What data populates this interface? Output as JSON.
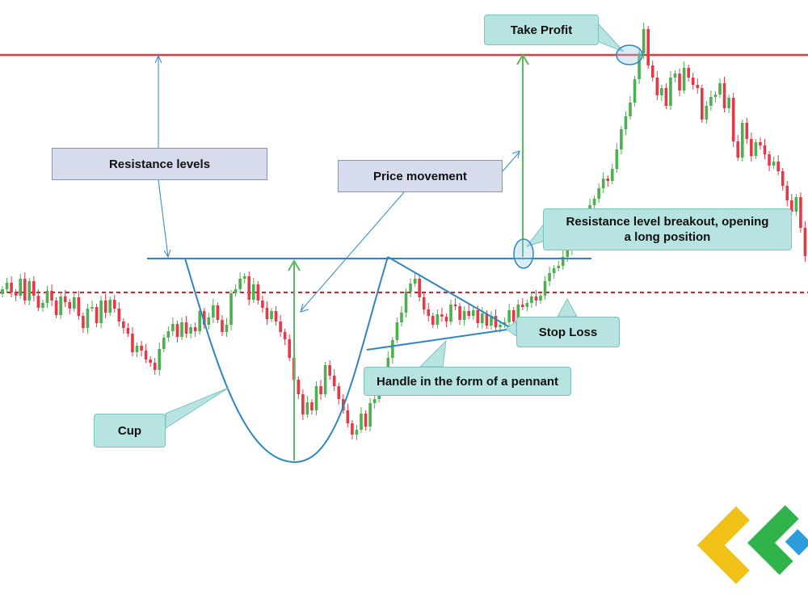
{
  "chart_data": {
    "type": "candlestick",
    "title": "",
    "xlabel": "",
    "ylabel": "",
    "axes_visible": false,
    "grid": false,
    "colors": {
      "up": "#4caf50",
      "down": "#e53945",
      "resistance_line": "#e53945",
      "stop_loss_line": "#d1222e",
      "pattern_lines": "#2e86c1",
      "projection_arrows": "#5cb85c",
      "callout_teal": "#b7e3e0",
      "callout_grey": "#d6dcec"
    },
    "candles_approx_closes": [
      358,
      350,
      362,
      366,
      345,
      372,
      348,
      366,
      381,
      375,
      360,
      372,
      390,
      367,
      374,
      382,
      368,
      391,
      406,
      382,
      380,
      400,
      372,
      387,
      371,
      382,
      398,
      406,
      413,
      436,
      428,
      434,
      445,
      449,
      458,
      432,
      418,
      410,
      401,
      417,
      399,
      413,
      405,
      410,
      385,
      402,
      393,
      378,
      396,
      411,
      402,
      363,
      358,
      345,
      342,
      371,
      352,
      372,
      381,
      395,
      385,
      398,
      411,
      420,
      443,
      470,
      488,
      513,
      498,
      508,
      478,
      488,
      452,
      465,
      478,
      494,
      508,
      524,
      538,
      532,
      512,
      528,
      499,
      494,
      485,
      470,
      443,
      421,
      399,
      387,
      361,
      351,
      345,
      368,
      383,
      391,
      402,
      389,
      392,
      398,
      377,
      379,
      396,
      385,
      391,
      384,
      400,
      388,
      403,
      391,
      405,
      402,
      399,
      384,
      398,
      377,
      380,
      375,
      367,
      372,
      366,
      348,
      338,
      332,
      329,
      318,
      309,
      298,
      287,
      270,
      265,
      254,
      246,
      233,
      221,
      224,
      209,
      185,
      160,
      144,
      127,
      98,
      66,
      36,
      81,
      96,
      118,
      109,
      131,
      96,
      91,
      112,
      84,
      96,
      105,
      109,
      148,
      131,
      120,
      117,
      103,
      134,
      121,
      175,
      195,
      152,
      172,
      193,
      176,
      180,
      191,
      205,
      200,
      212,
      230,
      248,
      262,
      244,
      282,
      317,
      336,
      343
    ],
    "levels": [
      {
        "name": "resistance",
        "value": 320
      },
      {
        "name": "take_profit",
        "value": 68
      },
      {
        "name": "stop_loss",
        "value": 362
      }
    ],
    "annotations": [
      "Take Profit",
      "Resistance levels",
      "Price movement",
      "Resistance level breakout, opening a long position",
      "Stop Loss",
      "Handle in the form of a pennant",
      "Cup"
    ]
  },
  "callouts": {
    "take_profit": "Take Profit",
    "resistance_levels": "Resistance levels",
    "price_movement": "Price movement",
    "breakout_line1": "Resistance level breakout, opening",
    "breakout_line2": "a long position",
    "stop_loss": "Stop Loss",
    "handle": "Handle in the form of a pennant",
    "cup": "Cup"
  },
  "logo": {
    "icon": "litefinance-logo-icon",
    "colors": [
      "#2fb34a",
      "#2d9cdb",
      "#f2c118"
    ]
  }
}
